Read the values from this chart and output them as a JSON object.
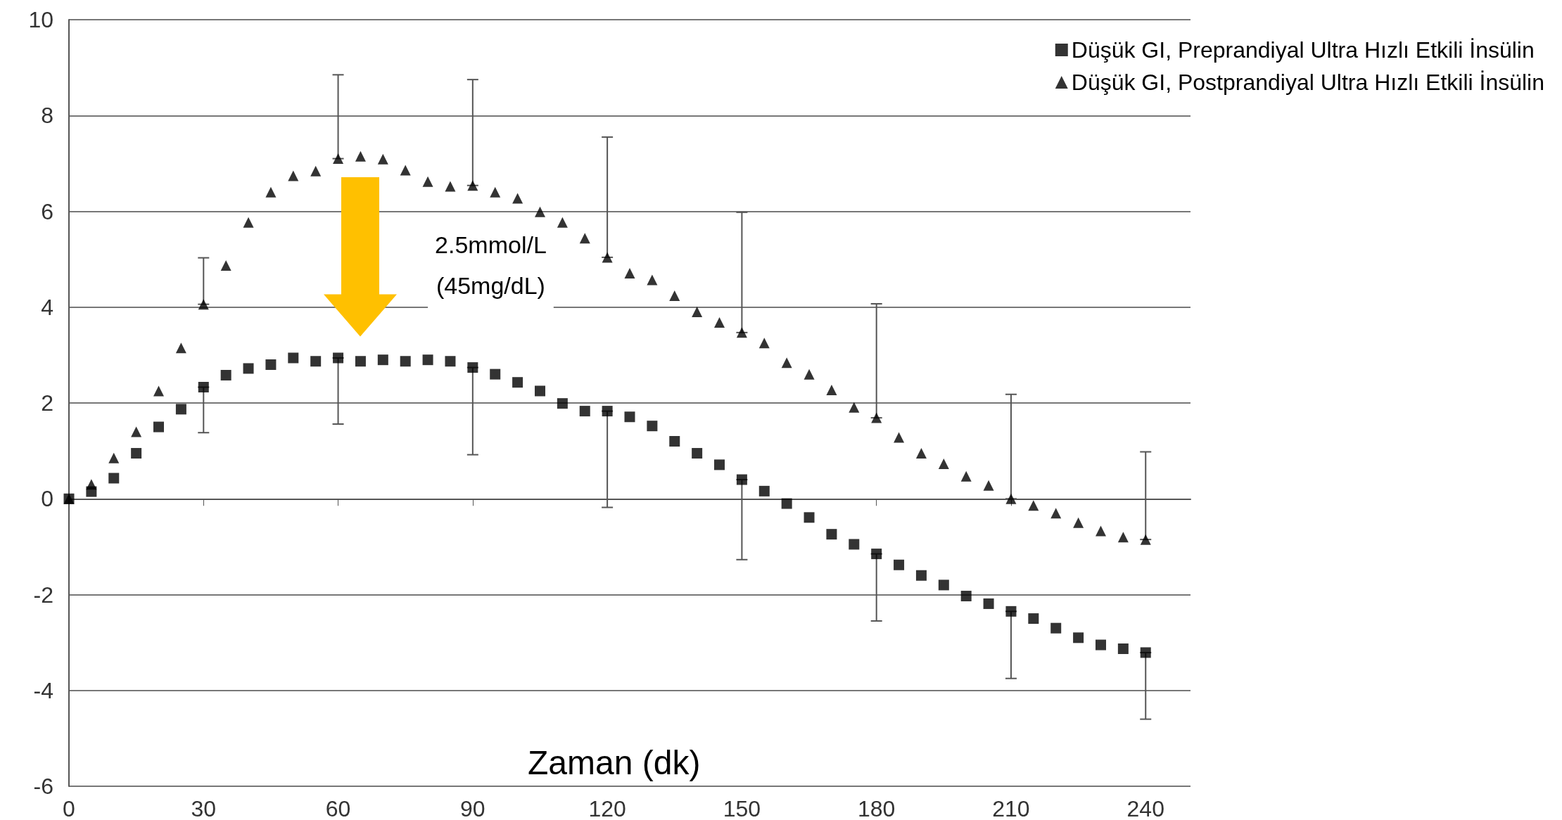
{
  "chart_data": {
    "type": "scatter",
    "xlabel": "Zaman (dk)",
    "x": [
      0,
      5,
      10,
      15,
      20,
      25,
      30,
      35,
      40,
      45,
      50,
      55,
      60,
      65,
      70,
      75,
      80,
      85,
      90,
      95,
      100,
      105,
      110,
      115,
      120,
      125,
      130,
      135,
      140,
      145,
      150,
      155,
      160,
      165,
      170,
      175,
      180,
      185,
      190,
      195,
      200,
      205,
      210,
      215,
      220,
      225,
      230,
      235,
      240
    ],
    "series": [
      {
        "name": "Düşük GI, Preprandiyal Ultra Hızlı Etkili İnsülin",
        "color": "#000000",
        "marker": "square",
        "values": [
          0,
          0.15,
          0.43,
          0.95,
          1.5,
          1.87,
          2.33,
          2.58,
          2.72,
          2.8,
          2.94,
          2.87,
          2.94,
          2.87,
          2.9,
          2.87,
          2.9,
          2.87,
          2.74,
          2.6,
          2.43,
          2.25,
          1.99,
          1.83,
          1.83,
          1.71,
          1.52,
          1.2,
          0.95,
          0.71,
          0.4,
          0.16,
          -0.1,
          -0.39,
          -0.74,
          -0.95,
          -1.15,
          -1.38,
          -1.6,
          -1.8,
          -2.03,
          -2.19,
          -2.35,
          -2.5,
          -2.7,
          -2.9,
          -3.05,
          -3.13,
          -3.21
        ],
        "errors": [
          null,
          null,
          null,
          null,
          null,
          null,
          [
            1.38,
            2.33
          ],
          null,
          null,
          null,
          null,
          null,
          [
            1.56,
            2.94
          ],
          null,
          null,
          null,
          null,
          null,
          [
            0.92,
            2.74
          ],
          null,
          null,
          null,
          null,
          null,
          [
            -0.18,
            1.83
          ],
          null,
          null,
          null,
          null,
          null,
          [
            -1.27,
            0.4
          ],
          null,
          null,
          null,
          null,
          null,
          [
            -2.55,
            -1.15
          ],
          null,
          null,
          null,
          null,
          null,
          [
            -3.75,
            -2.35
          ],
          null,
          null,
          null,
          null,
          null,
          [
            -4.6,
            -3.21
          ]
        ]
      },
      {
        "name": "Düşük GI, Postprandiyal Ultra Hızlı Etkili İnsülin",
        "color": "#000000",
        "marker": "triangle",
        "values": [
          0,
          0.3,
          0.85,
          1.4,
          2.25,
          3.15,
          4.06,
          4.87,
          5.77,
          6.4,
          6.74,
          6.84,
          7.1,
          7.15,
          7.09,
          6.86,
          6.62,
          6.52,
          6.54,
          6.4,
          6.27,
          5.99,
          5.77,
          5.44,
          5.04,
          4.71,
          4.57,
          4.24,
          3.9,
          3.68,
          3.47,
          3.25,
          2.84,
          2.6,
          2.27,
          1.91,
          1.69,
          1.28,
          0.95,
          0.73,
          0.47,
          0.28,
          0,
          -0.14,
          -0.3,
          -0.5,
          -0.67,
          -0.8,
          -0.85
        ],
        "errors": [
          null,
          null,
          null,
          null,
          null,
          null,
          [
            4.06,
            5.03
          ],
          null,
          null,
          null,
          null,
          null,
          [
            7.1,
            8.85
          ],
          null,
          null,
          null,
          null,
          null,
          [
            6.54,
            8.75
          ],
          null,
          null,
          null,
          null,
          null,
          [
            5.04,
            7.55
          ],
          null,
          null,
          null,
          null,
          null,
          [
            3.47,
            5.98
          ],
          null,
          null,
          null,
          null,
          null,
          [
            1.69,
            4.07
          ],
          null,
          null,
          null,
          null,
          null,
          [
            0,
            2.18
          ],
          null,
          null,
          null,
          null,
          null,
          [
            -0.85,
            0.98
          ]
        ]
      }
    ],
    "annotations": [
      "2.5mmol/L\n(45mg/dL)"
    ],
    "xlim": [
      0,
      250
    ],
    "xticks": [
      0,
      30,
      60,
      90,
      120,
      150,
      180,
      210,
      240
    ],
    "ylim": [
      -6,
      10
    ],
    "yticks": [
      -6,
      -4,
      -2,
      0,
      2,
      4,
      6,
      8,
      10
    ],
    "grid": "y",
    "legend": "top right"
  }
}
